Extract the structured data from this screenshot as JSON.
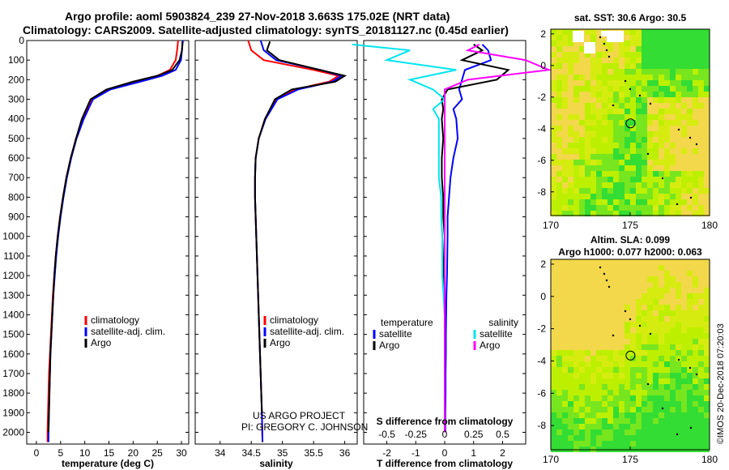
{
  "header": {
    "title_line1": "Argo profile: aoml 5903824_239 27-Nov-2018 3.663S 175.02E (NRT data)",
    "title_line2": "Climatology: CARS2009. Satellite-adjusted climatology: synTS_20181127.nc (0.45d earlier)"
  },
  "colors": {
    "climatology": "#ff0000",
    "satellite_adj": "#0000ff",
    "argo": "#000000",
    "satellite_salinity": "#00e5ee",
    "argo_salinity": "#ff00ff",
    "map_base": "#c8f000",
    "map_land_mask": "#ffffff"
  },
  "chart_data": [
    {
      "type": "line",
      "name": "temperature-profile",
      "xlabel": "temperature (deg C)",
      "ylabel": "",
      "xlim": [
        -2,
        31.5
      ],
      "ylim": [
        2060,
        0
      ],
      "xticks": [
        "0",
        "5",
        "10",
        "15",
        "20",
        "25",
        "30"
      ],
      "yticks": [
        "0",
        "100",
        "200",
        "300",
        "400",
        "500",
        "600",
        "700",
        "800",
        "900",
        "1000",
        "1100",
        "1200",
        "1300",
        "1400",
        "1500",
        "1600",
        "1700",
        "1800",
        "1900",
        "2000"
      ],
      "series": [
        {
          "name": "climatology",
          "color": "#ff0000",
          "x": [
            29.3,
            29.1,
            28.8,
            27.6,
            25.0,
            21.0,
            15.0,
            11.5,
            9.6,
            8.2,
            7.1,
            6.2,
            5.5,
            4.9,
            4.4,
            4.0,
            3.7,
            3.4,
            3.2,
            3.0,
            2.8,
            2.6,
            2.5,
            2.4,
            2.3,
            2.3
          ],
          "depth": [
            0,
            50,
            100,
            150,
            180,
            210,
            250,
            300,
            400,
            500,
            600,
            700,
            800,
            900,
            1000,
            1100,
            1200,
            1300,
            1400,
            1500,
            1600,
            1700,
            1800,
            1900,
            2000,
            2050
          ]
        },
        {
          "name": "satellite-adj. clim.",
          "color": "#0000ff",
          "x": [
            30.3,
            30.1,
            29.9,
            28.8,
            26.0,
            21.5,
            15.3,
            11.7,
            9.8,
            8.3,
            7.2,
            6.3,
            5.6,
            5.0,
            4.5,
            4.1,
            3.8,
            3.5,
            3.3,
            3.1,
            2.9,
            2.8,
            2.7,
            2.6,
            2.5,
            2.5
          ],
          "depth": [
            0,
            50,
            100,
            150,
            180,
            210,
            250,
            300,
            400,
            500,
            600,
            700,
            800,
            900,
            1000,
            1100,
            1200,
            1300,
            1400,
            1500,
            1600,
            1700,
            1800,
            1900,
            2000,
            2050
          ]
        },
        {
          "name": "Argo",
          "color": "#000000",
          "x": [
            30.2,
            30.1,
            29.6,
            28.1,
            25.0,
            20.0,
            14.5,
            11.2,
            9.4,
            8.2,
            7.1,
            6.2,
            5.5,
            4.9,
            4.4,
            4.0,
            3.7,
            3.5,
            3.3,
            3.1,
            2.9,
            2.8,
            2.7,
            2.6,
            2.5
          ],
          "depth": [
            5,
            50,
            100,
            150,
            180,
            210,
            250,
            300,
            400,
            500,
            600,
            700,
            800,
            900,
            1000,
            1100,
            1200,
            1300,
            1400,
            1500,
            1600,
            1700,
            1800,
            1900,
            2000
          ]
        }
      ],
      "legend": [
        "climatology",
        "satellite-adj. clim.",
        "Argo"
      ],
      "legend_position": "lower-right"
    },
    {
      "type": "line",
      "name": "salinity-profile",
      "xlabel": "salinity",
      "xlim": [
        33.6,
        36.2
      ],
      "ylim": [
        2060,
        0
      ],
      "xticks": [
        "34",
        "34.5",
        "35",
        "35.5",
        "36"
      ],
      "series": [
        {
          "name": "climatology",
          "color": "#ff0000",
          "x": [
            34.45,
            34.5,
            34.7,
            35.5,
            35.9,
            35.75,
            35.2,
            34.9,
            34.72,
            34.62,
            34.57,
            34.56,
            34.56,
            34.57,
            34.58,
            34.59,
            34.6,
            34.61,
            34.62,
            34.63,
            34.64,
            34.65,
            34.66,
            34.67,
            34.68
          ],
          "depth": [
            0,
            50,
            100,
            150,
            180,
            210,
            250,
            300,
            400,
            500,
            600,
            700,
            800,
            900,
            1000,
            1100,
            1200,
            1300,
            1400,
            1500,
            1600,
            1700,
            1800,
            1900,
            2050
          ]
        },
        {
          "name": "satellite-adj. clim.",
          "color": "#0000ff",
          "x": [
            34.65,
            34.7,
            34.9,
            35.6,
            35.95,
            35.8,
            35.25,
            34.92,
            34.73,
            34.62,
            34.57,
            34.56,
            34.56,
            34.57,
            34.58,
            34.59,
            34.6,
            34.61,
            34.62,
            34.63,
            34.64,
            34.65,
            34.66,
            34.67,
            34.68
          ],
          "depth": [
            0,
            50,
            100,
            150,
            180,
            210,
            250,
            300,
            400,
            500,
            600,
            700,
            800,
            900,
            1000,
            1100,
            1200,
            1300,
            1400,
            1500,
            1600,
            1700,
            1800,
            1900,
            2050
          ]
        },
        {
          "name": "Argo",
          "color": "#000000",
          "x": [
            34.8,
            34.75,
            34.95,
            35.6,
            36.0,
            35.85,
            35.15,
            34.88,
            34.72,
            34.62,
            34.57,
            34.56,
            34.56,
            34.57,
            34.58,
            34.59,
            34.6,
            34.61,
            34.62,
            34.63,
            34.64,
            34.65,
            34.66,
            34.67
          ],
          "depth": [
            5,
            50,
            100,
            150,
            180,
            210,
            250,
            300,
            400,
            500,
            600,
            700,
            800,
            900,
            1000,
            1100,
            1200,
            1300,
            1400,
            1500,
            1600,
            1700,
            1800,
            1900
          ]
        }
      ],
      "legend": [
        "climatology",
        "satellite-adj. clim.",
        "Argo"
      ],
      "legend_position": "lower-right"
    },
    {
      "type": "line",
      "name": "difference-profile",
      "xlabel": "T difference from climatology",
      "xlabel_top": "S difference from climatology",
      "xlim": [
        -2.8,
        2.8
      ],
      "ylim": [
        2060,
        0
      ],
      "xticks": [
        "-2",
        "-1",
        "0",
        "1",
        "2"
      ],
      "xticks_top": [
        "-0.5",
        "-0.25",
        "0",
        "0.25",
        "0.5"
      ],
      "series": [
        {
          "name": "temperature satellite",
          "color": "#0000ff",
          "x": [
            1.3,
            1.5,
            1.6,
            0.7,
            0.6,
            0.5,
            0.6,
            0.3,
            0.4,
            0.45,
            0.3,
            0.2,
            0.15,
            0.1,
            0.1,
            0.08,
            0.06,
            0.05,
            0.04,
            0.04,
            0.03,
            0.03,
            0.02,
            0.02
          ],
          "depth": [
            20,
            50,
            100,
            150,
            200,
            250,
            300,
            350,
            400,
            500,
            600,
            700,
            800,
            900,
            1000,
            1200,
            1300,
            1400,
            1500,
            1600,
            1700,
            1800,
            1900,
            2000
          ]
        },
        {
          "name": "temperature Argo",
          "color": "#000000",
          "x": [
            1.0,
            1.3,
            0.6,
            2.2,
            1.8,
            0.1,
            -0.1,
            -0.05,
            -0.1,
            -0.05,
            -0.1,
            -0.1,
            -0.05,
            -0.05,
            0.0,
            -0.05,
            -0.02,
            0.0,
            0.0,
            0.0,
            0.0,
            0.0,
            0.0,
            0.0
          ],
          "depth": [
            20,
            50,
            100,
            150,
            200,
            250,
            300,
            350,
            400,
            500,
            600,
            700,
            800,
            900,
            1000,
            1200,
            1300,
            1400,
            1500,
            1600,
            1700,
            1800,
            1900,
            2000
          ]
        },
        {
          "name": "salinity satellite",
          "color": "#00e5ee",
          "x": [
            -0.8,
            -0.3,
            -0.5,
            0.1,
            -0.3,
            -0.1,
            0.0,
            -0.1,
            -0.05,
            -0.05,
            -0.05,
            -0.05,
            -0.03,
            -0.03,
            -0.02,
            -0.02,
            -0.01,
            0.0,
            0.0,
            0.0,
            0.0,
            0.0,
            0.0,
            0.0
          ],
          "depth": [
            20,
            50,
            100,
            150,
            200,
            250,
            300,
            350,
            400,
            500,
            600,
            700,
            800,
            900,
            1000,
            1200,
            1300,
            1400,
            1500,
            1600,
            1700,
            1800,
            1900,
            2000
          ]
        },
        {
          "name": "salinity Argo",
          "color": "#ff00ff",
          "x": [
            0.3,
            0.2,
            0.7,
            0.9,
            0.2,
            0.0,
            0.0,
            0.0,
            0.0,
            0.0,
            0.0,
            0.0,
            0.0,
            0.0,
            0.0,
            0.0,
            0.0,
            0.0,
            0.0,
            0.0,
            0.0,
            0.0,
            0.0,
            0.0
          ],
          "depth": [
            20,
            50,
            100,
            150,
            200,
            250,
            300,
            350,
            400,
            500,
            600,
            700,
            800,
            900,
            1000,
            1200,
            1300,
            1400,
            1500,
            1600,
            1700,
            1800,
            1900,
            2000
          ]
        }
      ],
      "legend_left_title": "temperature",
      "legend_right_title": "salinity",
      "legend_left": [
        "satellite",
        "Argo"
      ],
      "legend_right": [
        "satellite",
        "Argo"
      ]
    },
    {
      "type": "heatmap",
      "name": "sst-map",
      "title": "sat. SST: 30.6 Argo: 30.5",
      "xlim": [
        170,
        180
      ],
      "ylim": [
        -9.5,
        2.3
      ],
      "xticks": [
        "170",
        "175",
        "180"
      ],
      "yticks": [
        "2",
        "0",
        "-2",
        "-4",
        "-6",
        "-8"
      ],
      "marker": {
        "lon": 175.02,
        "lat": -3.663
      }
    },
    {
      "type": "heatmap",
      "name": "sla-map",
      "title_line1": "Altim. SLA: 0.099",
      "title_line2": "Argo h1000: 0.077 h2000: 0.063",
      "xlim": [
        170,
        180
      ],
      "ylim": [
        -9.5,
        2.3
      ],
      "xticks": [
        "170",
        "175",
        "180"
      ],
      "yticks": [
        "2",
        "0",
        "-2",
        "-4",
        "-6",
        "-8"
      ],
      "marker": {
        "lon": 175.02,
        "lat": -3.663
      }
    }
  ],
  "credits": {
    "line1": "US ARGO PROJECT",
    "line2": "PI: GREGORY C. JOHNSON",
    "imos_stamp": "©IMOS 20-Dec-2018 07:20:03"
  }
}
